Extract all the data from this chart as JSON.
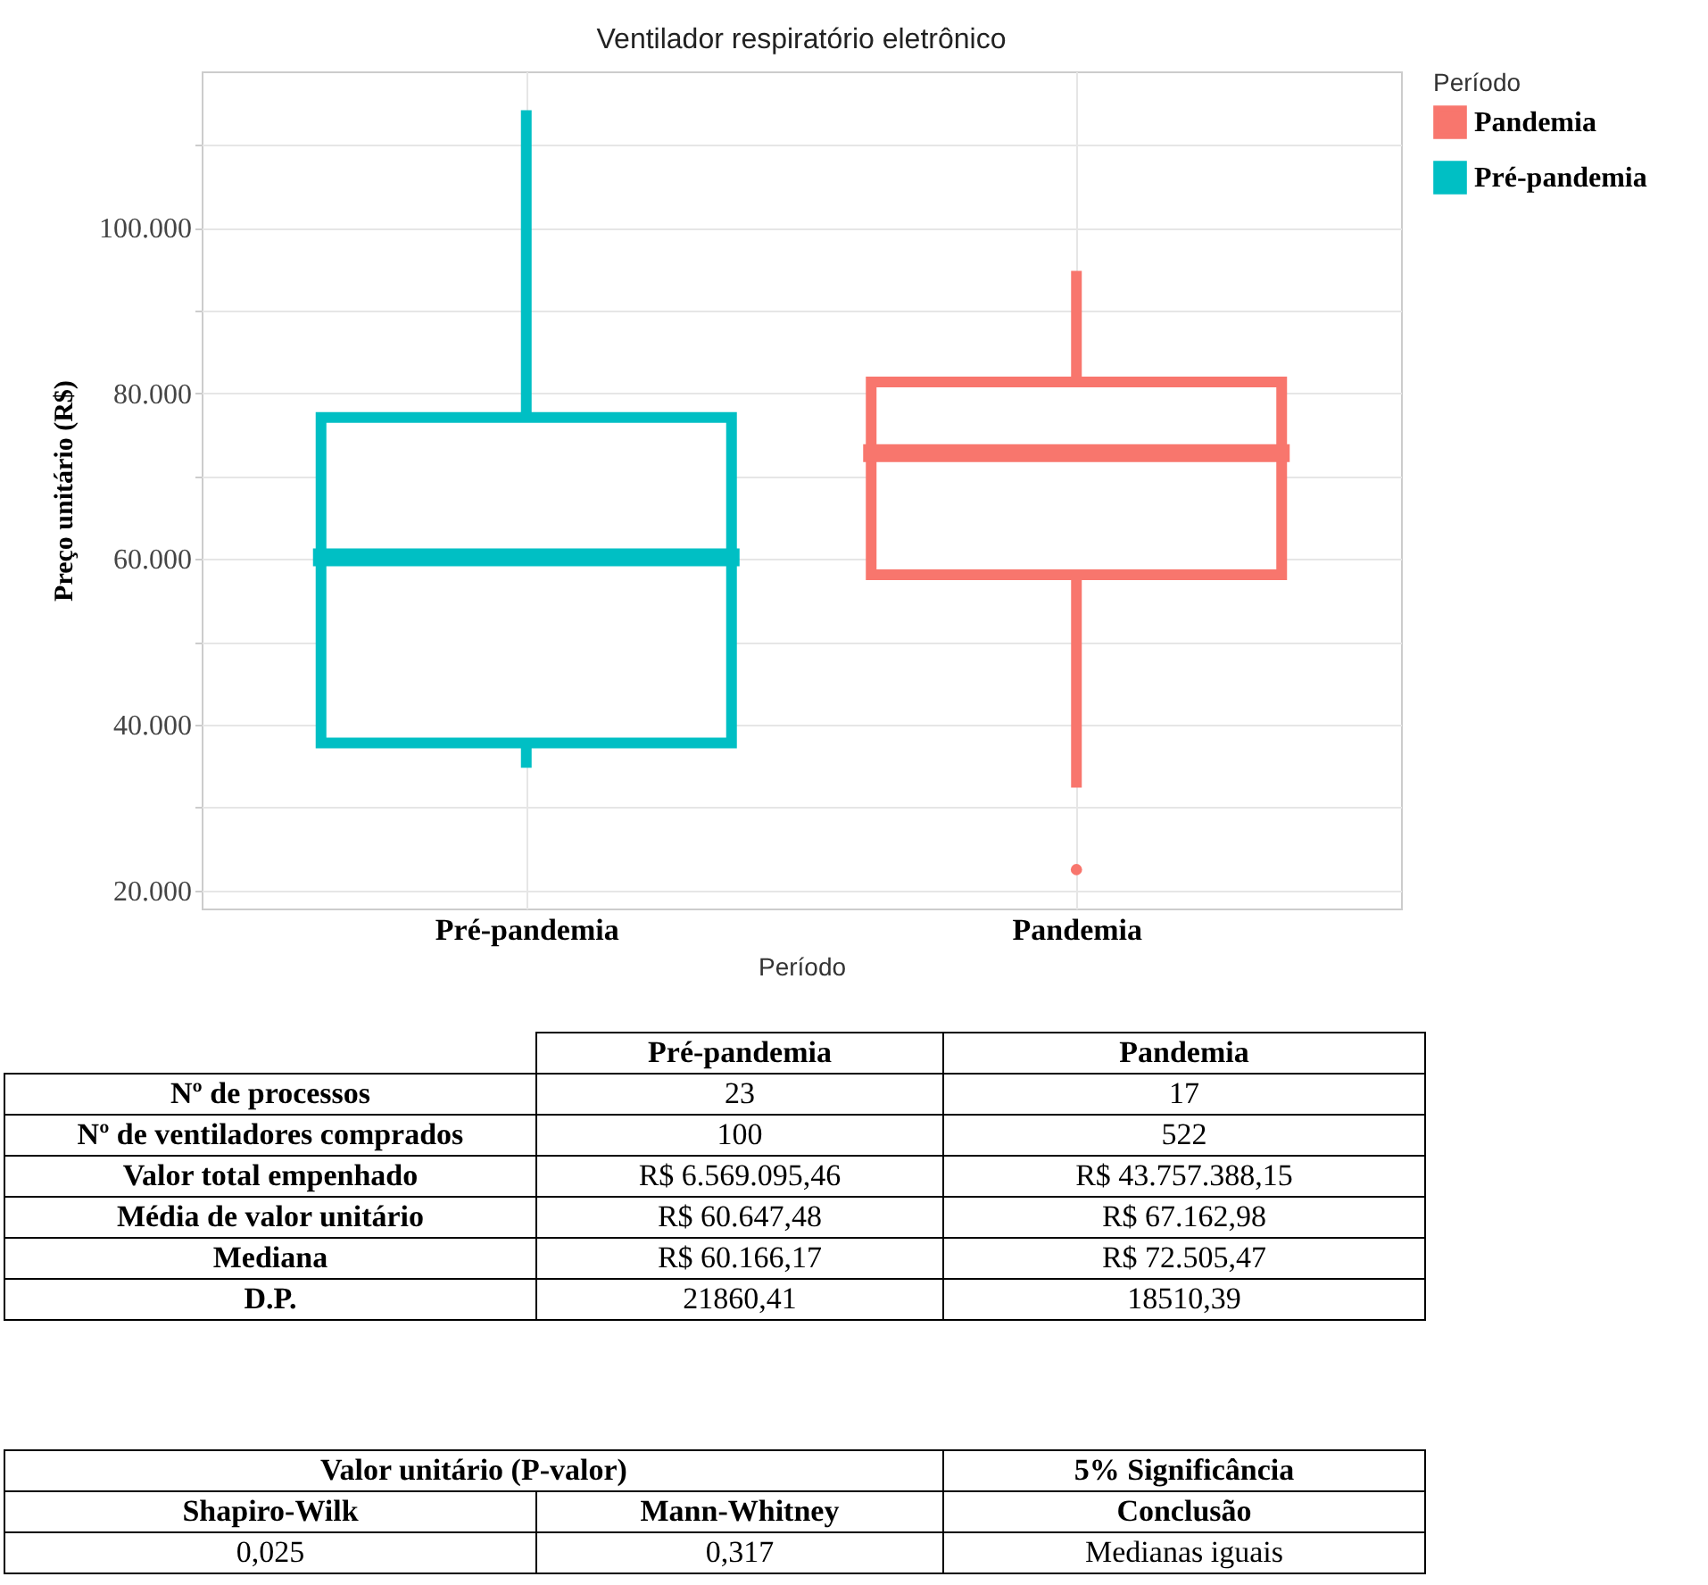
{
  "chart_data": {
    "type": "box",
    "title": "Ventilador respiratório eletrônico",
    "xlabel": "Período",
    "ylabel": "Preço unitário (R$)",
    "legend_title": "Período",
    "categories": [
      "Pré-pandemia",
      "Pandemia"
    ],
    "series": [
      {
        "name": "Pandemia",
        "color": "#f8766d",
        "boxes": [
          null,
          {
            "low": 32400,
            "q1": 58100,
            "median": 72800,
            "q3": 81400,
            "high": 94800,
            "outliers": [
              22500
            ]
          }
        ]
      },
      {
        "name": "Pré-pandemia",
        "color": "#00bfc4",
        "boxes": [
          {
            "low": 34800,
            "q1": 37800,
            "median": 60200,
            "q3": 77100,
            "high": 114200
          },
          null
        ]
      }
    ],
    "ylim": [
      17800,
      118900
    ],
    "yticks": [
      {
        "value": 20000,
        "label": "20.000"
      },
      {
        "value": 30000,
        "label": null
      },
      {
        "value": 40000,
        "label": "40.000"
      },
      {
        "value": 50000,
        "label": null
      },
      {
        "value": 60000,
        "label": "60.000"
      },
      {
        "value": 70000,
        "label": null
      },
      {
        "value": 80000,
        "label": "80.000"
      },
      {
        "value": 90000,
        "label": null
      },
      {
        "value": 100000,
        "label": "100.000"
      },
      {
        "value": 110000,
        "label": null
      }
    ],
    "grid": true,
    "legend": "right",
    "annotations": [
      "Pré-pandemia",
      "Pandemia",
      "Nº de processos",
      "23",
      "17",
      "Nº de ventiladores comprados",
      "100",
      "522",
      "Valor total empenhado",
      "R$ 6.569.095,46",
      "R$ 43.757.388,15",
      "Média de valor unitário",
      "R$ 60.647,48",
      "R$ 67.162,98",
      "Mediana",
      "R$ 60.166,17",
      "R$ 72.505,47",
      "D.P.",
      "21860,41",
      "18510,39",
      "Valor unitário (P-valor)",
      "5% Significância",
      "Shapiro-Wilk",
      "Mann-Whitney",
      "Conclusão",
      "0,025",
      "0,317",
      "Medianas iguais"
    ]
  }
}
